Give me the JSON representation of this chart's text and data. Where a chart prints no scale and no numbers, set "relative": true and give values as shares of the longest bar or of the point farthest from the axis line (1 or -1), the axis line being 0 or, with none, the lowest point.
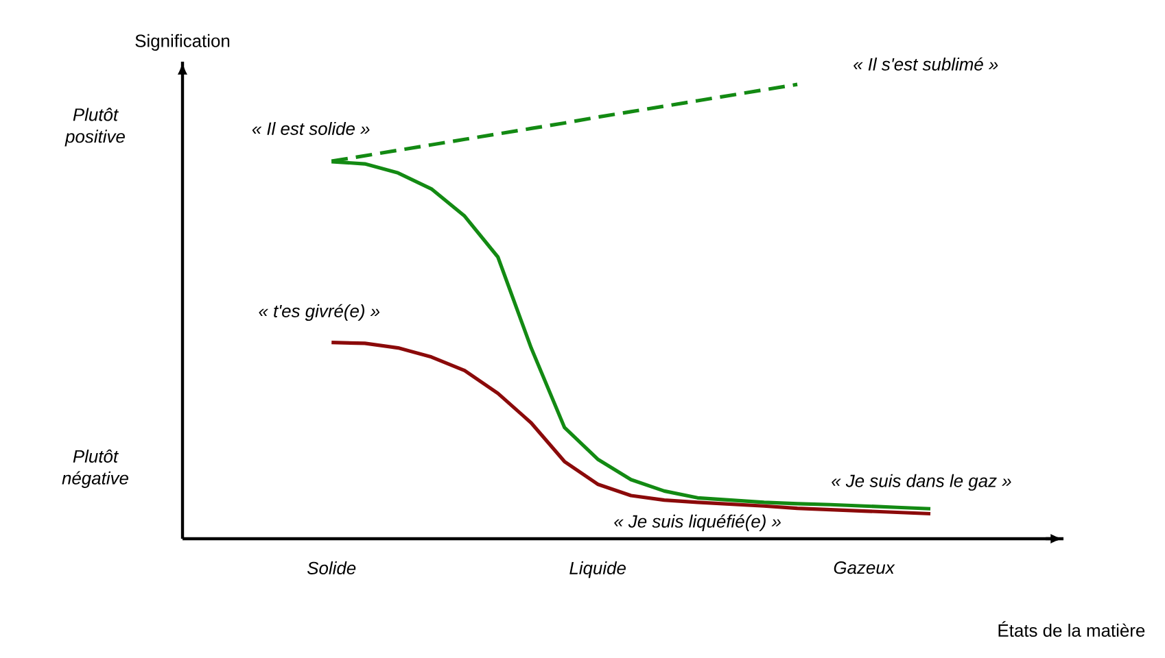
{
  "chart_data": {
    "type": "line",
    "relative": true,
    "xlabel": "États de la matière",
    "ylabel": "Signification",
    "categories": [
      "Solide",
      null,
      null,
      null,
      null,
      null,
      null,
      null,
      "Liquide",
      null,
      null,
      null,
      null,
      null,
      null,
      null,
      "Gazeux",
      null,
      null
    ],
    "series": [
      {
        "color": "#138a13",
        "line_style": "solid",
        "values": [
          0.83,
          0.825,
          0.805,
          0.77,
          0.71,
          0.62,
          0.42,
          0.245,
          0.175,
          0.13,
          0.105,
          0.09,
          0.085,
          0.08,
          0.077,
          0.075,
          0.072,
          0.069,
          0.066
        ]
      },
      {
        "color": "#8b0a0a",
        "line_style": "solid",
        "values": [
          0.432,
          0.43,
          0.42,
          0.4,
          0.37,
          0.32,
          0.255,
          0.17,
          0.12,
          0.095,
          0.085,
          0.08,
          0.076,
          0.072,
          0.067,
          0.064,
          0.061,
          0.058,
          0.055
        ]
      },
      {
        "color": "#138a13",
        "line_style": "dashed",
        "values": [
          0.831,
          0.843,
          0.855,
          0.867,
          0.879,
          0.891,
          0.903,
          0.915,
          0.928,
          0.94,
          0.952,
          0.964,
          0.976,
          0.988,
          1,
          null,
          null,
          null,
          null
        ]
      }
    ],
    "annotations": [
      "« Il est solide »",
      "« Il s'est sublimé »",
      "« t'es givré(e) »",
      "« Je suis liquéfié(e) »",
      "« Je suis dans le gaz »",
      "Plutôt positive",
      "Plutôt négative"
    ]
  }
}
